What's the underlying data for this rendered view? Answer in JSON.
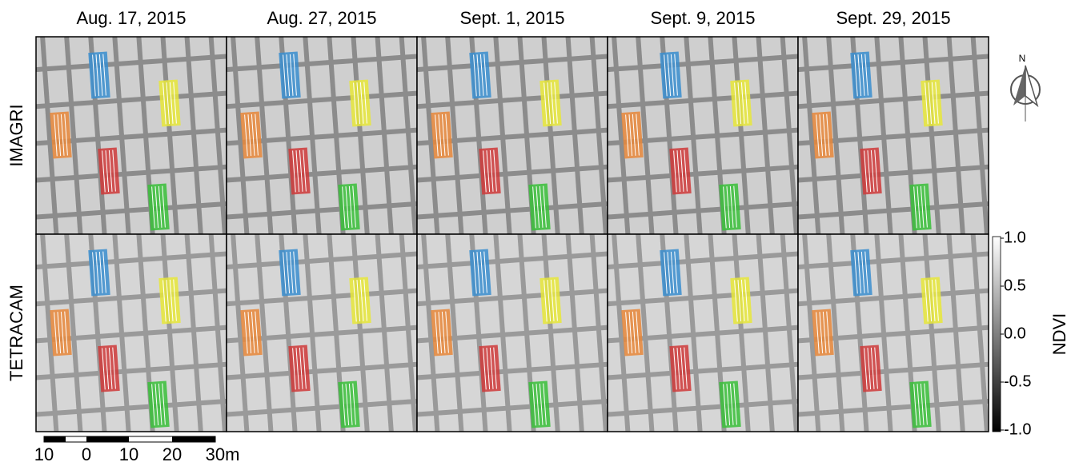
{
  "columns": [
    "Aug. 17, 2015",
    "Aug. 27, 2015",
    "Sept. 1, 2015",
    "Sept. 9, 2015",
    "Sept. 29, 2015"
  ],
  "rows": [
    "IMAGRI",
    "TETRACAM"
  ],
  "colorbar": {
    "label": "NDVI",
    "ticks": [
      "1.0",
      "0.5",
      "0.0",
      "-0.5",
      "-1.0"
    ]
  },
  "scale_bar": {
    "labels": [
      "10",
      "0",
      "10",
      "20",
      "30m"
    ]
  },
  "compass": {
    "label": "N"
  }
}
